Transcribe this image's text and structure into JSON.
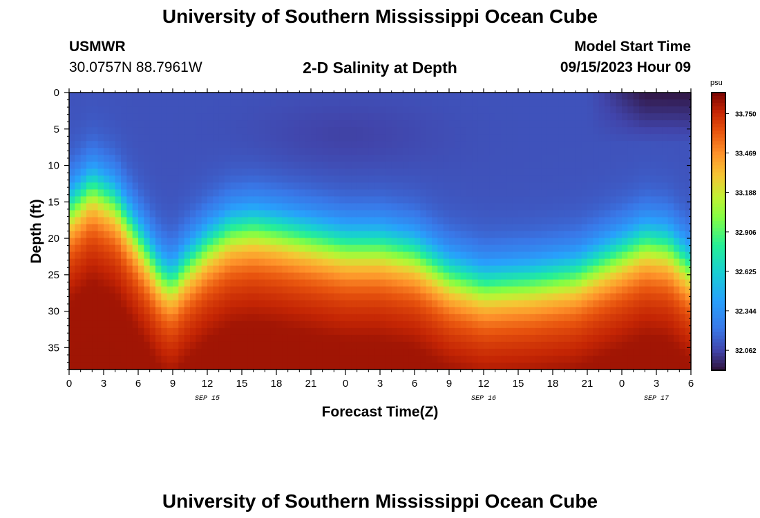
{
  "header": {
    "title": "University of Southern Mississippi Ocean Cube",
    "station_id": "USMWR",
    "station_coords": "30.0757N  88.7961W",
    "subtitle": "2-D Salinity at Depth",
    "model_start_label": "Model Start Time",
    "model_start_value": "09/15/2023 Hour 09"
  },
  "footer": {
    "title": "University of Southern Mississippi Ocean Cube"
  },
  "chart_data": {
    "type": "heatmap",
    "title": "2-D Salinity at Depth",
    "xlabel": "Forecast Time(Z)",
    "ylabel": "Depth (ft)",
    "x_range_hours": [
      0,
      54
    ],
    "x_tick_labels": [
      "0",
      "3",
      "6",
      "9",
      "12",
      "15",
      "18",
      "21",
      "0",
      "3",
      "6",
      "9",
      "12",
      "15",
      "18",
      "21",
      "0",
      "3",
      "6"
    ],
    "x_date_labels": [
      {
        "label": "SEP 15",
        "at_index": 4
      },
      {
        "label": "SEP 16",
        "at_index": 12
      },
      {
        "label": "SEP 17",
        "at_index": 17
      }
    ],
    "ylim": [
      0,
      38
    ],
    "y_ticks": [
      0,
      5,
      10,
      15,
      20,
      25,
      30,
      35
    ],
    "colorbar": {
      "unit": "psu",
      "tick_labels": [
        "33.750",
        "33.469",
        "33.188",
        "32.906",
        "32.625",
        "32.344",
        "32.062"
      ],
      "tick_values": [
        33.75,
        33.469,
        33.188,
        32.906,
        32.625,
        32.344,
        32.062
      ],
      "range": [
        31.92,
        33.9
      ]
    },
    "fresh_surface_value_psu": 32.1,
    "halocline_center_depth_ft": {
      "hours": [
        0,
        2,
        4,
        6,
        8,
        9,
        10,
        12,
        14,
        16,
        18,
        21,
        24,
        27,
        30,
        33,
        36,
        40,
        44,
        48,
        50,
        52,
        54
      ],
      "depth": [
        16,
        13,
        15,
        20,
        25,
        26,
        24,
        21,
        19,
        18.5,
        19,
        20,
        21,
        21,
        22,
        25,
        26.5,
        26,
        25,
        22,
        20.5,
        21,
        24
      ]
    },
    "surface_minimum": {
      "hours": [
        48,
        54
      ],
      "depth_ft": [
        0,
        7
      ],
      "min_psu": 31.95
    }
  }
}
